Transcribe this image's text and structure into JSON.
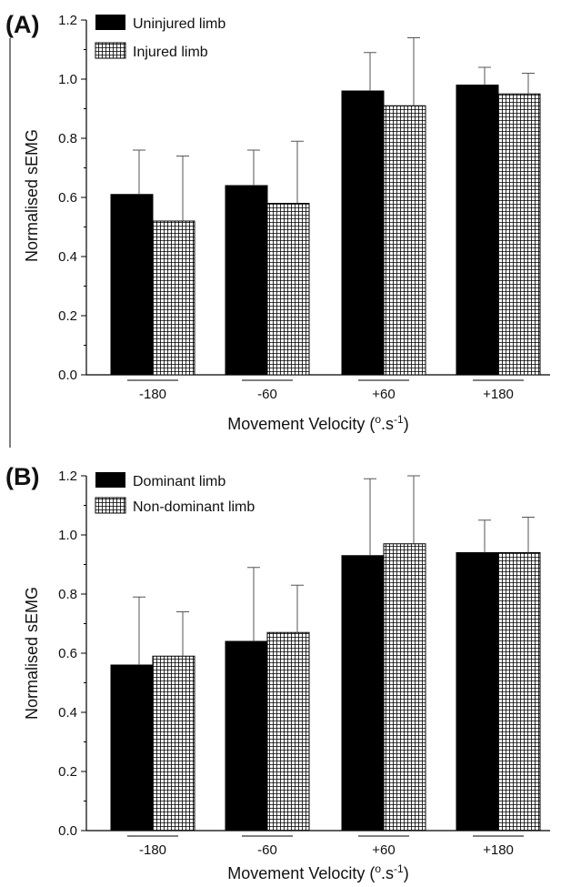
{
  "chart_data": [
    {
      "type": "bar",
      "panel_label": "(A)",
      "categories": [
        "-180",
        "-60",
        "+60",
        "+180"
      ],
      "series": [
        {
          "name": "Uninjured limb",
          "values": [
            0.61,
            0.64,
            0.96,
            0.98
          ],
          "error": [
            0.15,
            0.12,
            0.13,
            0.06
          ],
          "fill": "solid"
        },
        {
          "name": "Injured limb",
          "values": [
            0.52,
            0.58,
            0.91,
            0.95
          ],
          "error": [
            0.22,
            0.21,
            0.23,
            0.07
          ],
          "fill": "grid"
        }
      ],
      "xlabel_main": "Movement Velocity (",
      "xlabel_sup1": "o",
      "xlabel_mid": ".s",
      "xlabel_sup2": "-1",
      "xlabel_end": ")",
      "ylabel": "Normalised sEMG",
      "ylim": [
        0,
        1.2
      ],
      "yticks": [
        "0.0",
        "0.2",
        "0.4",
        "0.6",
        "0.8",
        "1.0",
        "1.2"
      ],
      "legend_position": "top-left"
    },
    {
      "type": "bar",
      "panel_label": "(B)",
      "categories": [
        "-180",
        "-60",
        "+60",
        "+180"
      ],
      "series": [
        {
          "name": "Dominant limb",
          "values": [
            0.56,
            0.64,
            0.93,
            0.94
          ],
          "error": [
            0.23,
            0.25,
            0.26,
            0.11
          ],
          "fill": "solid"
        },
        {
          "name": "Non-dominant limb",
          "values": [
            0.59,
            0.67,
            0.97,
            0.94
          ],
          "error": [
            0.15,
            0.16,
            0.23,
            0.12
          ],
          "fill": "grid"
        }
      ],
      "xlabel_main": "Movement Velocity (",
      "xlabel_sup1": "o",
      "xlabel_mid": ".s",
      "xlabel_sup2": "-1",
      "xlabel_end": ")",
      "ylabel": "Normalised sEMG",
      "ylim": [
        0,
        1.2
      ],
      "yticks": [
        "0.0",
        "0.2",
        "0.4",
        "0.6",
        "0.8",
        "1.0",
        "1.2"
      ],
      "legend_position": "top-left"
    }
  ],
  "colors": {
    "bar_solid": "#000000",
    "grid_line": "#000000",
    "background": "#ffffff",
    "error_bar": "#555555"
  }
}
